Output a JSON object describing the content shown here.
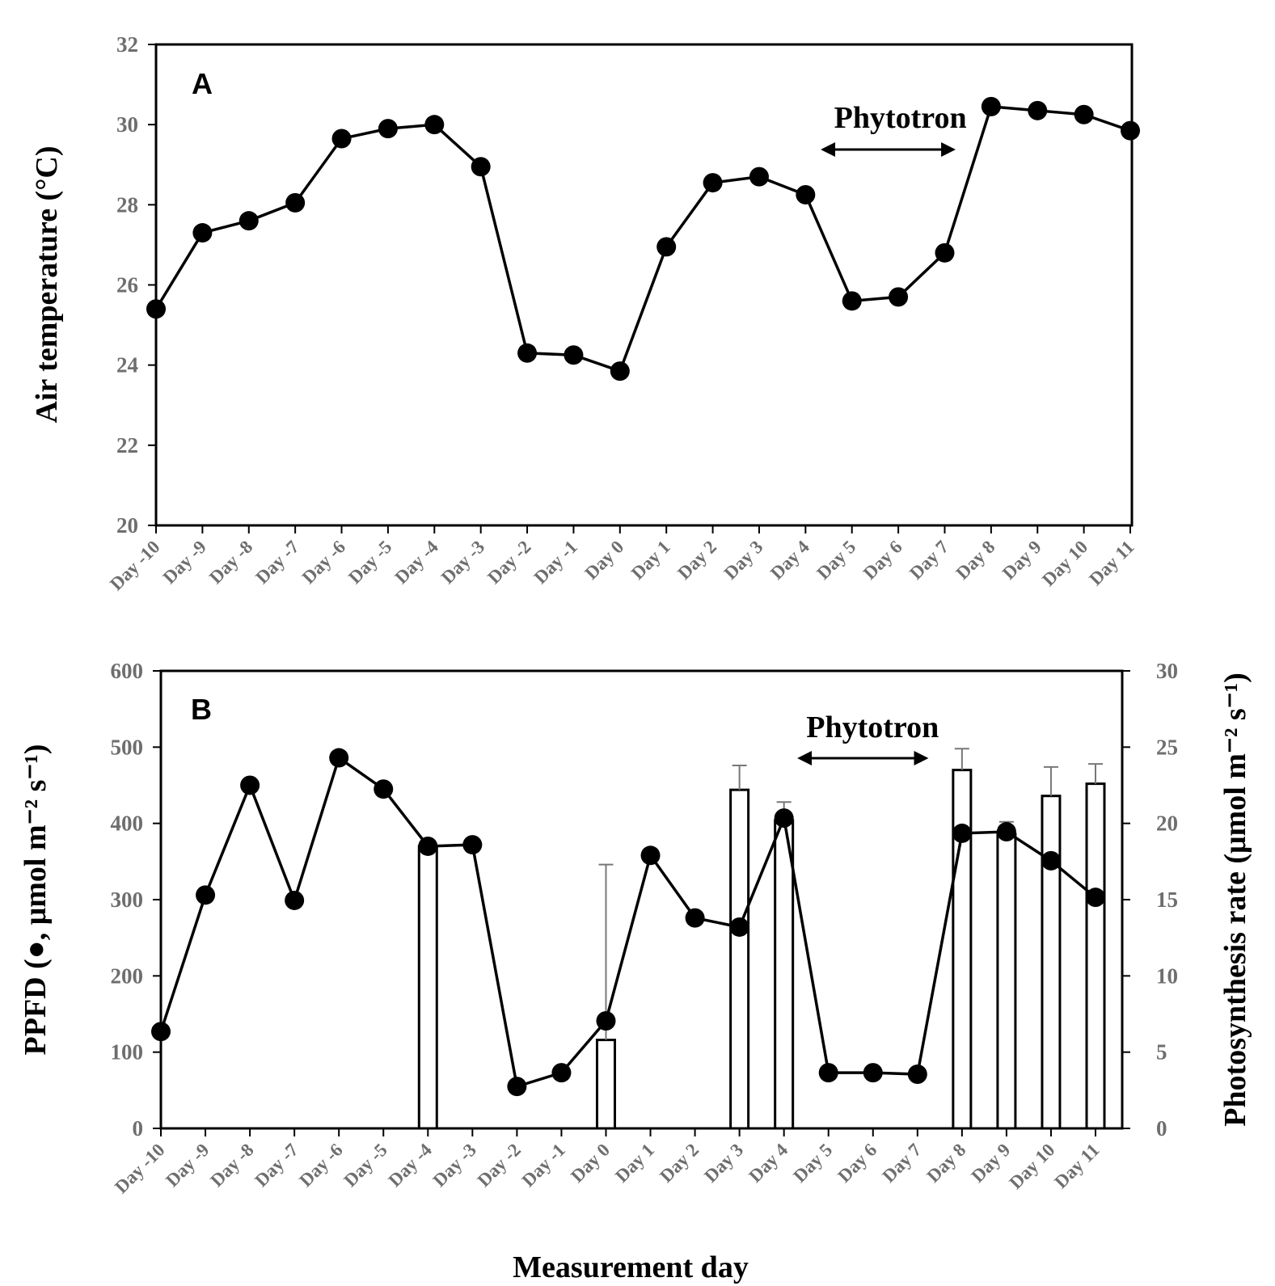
{
  "chart_data": [
    {
      "type": "line",
      "panel_label": "A",
      "categories": [
        "Day -10",
        "Day -9",
        "Day -8",
        "Day -7",
        "Day -6",
        "Day -5",
        "Day -4",
        "Day -3",
        "Day -2",
        "Day -1",
        "Day 0",
        "Day 1",
        "Day 2",
        "Day 3",
        "Day 4",
        "Day 5",
        "Day 6",
        "Day 7",
        "Day 8",
        "Day 9",
        "Day 10",
        "Day 11"
      ],
      "series": [
        {
          "name": "Air temperature",
          "values": [
            25.4,
            27.3,
            27.6,
            28.05,
            29.65,
            29.9,
            30.0,
            28.95,
            24.3,
            24.25,
            23.85,
            26.95,
            28.55,
            28.7,
            28.25,
            25.6,
            25.7,
            26.8,
            30.45,
            30.35,
            30.25,
            29.85
          ]
        }
      ],
      "ylabel": "Air temperature (°C)",
      "ylim": [
        20,
        32
      ],
      "yticks": [
        20,
        22,
        24,
        26,
        28,
        30,
        32
      ],
      "annotation": {
        "text": "Phytotron",
        "from": "Day 5",
        "to": "Day 7"
      }
    },
    {
      "type": "bar+line",
      "panel_label": "B",
      "categories": [
        "Day -10",
        "Day -9",
        "Day -8",
        "Day -7",
        "Day -6",
        "Day -5",
        "Day -4",
        "Day -3",
        "Day -2",
        "Day -1",
        "Day 0",
        "Day 1",
        "Day 2",
        "Day 3",
        "Day 4",
        "Day 5",
        "Day 6",
        "Day 7",
        "Day 8",
        "Day 9",
        "Day 10",
        "Day 11"
      ],
      "series": [
        {
          "name": "PPFD",
          "axis": "left",
          "values": [
            127,
            306,
            450,
            299,
            486,
            445,
            370,
            372,
            55,
            73,
            141,
            358,
            276,
            264,
            407,
            73,
            73,
            71,
            387,
            389,
            351,
            303
          ]
        },
        {
          "name": "Photosynthesis rate",
          "axis": "right",
          "kind": "bar",
          "values": [
            null,
            null,
            null,
            null,
            null,
            null,
            18.5,
            null,
            null,
            null,
            5.8,
            null,
            null,
            22.2,
            20.2,
            null,
            null,
            null,
            23.5,
            19.3,
            21.8,
            22.6
          ],
          "errors": [
            null,
            null,
            null,
            null,
            null,
            null,
            null,
            null,
            null,
            null,
            11.5,
            null,
            null,
            1.6,
            1.2,
            null,
            null,
            null,
            1.4,
            0.8,
            1.9,
            1.3
          ]
        }
      ],
      "ylabel_left": "PPFD (●, μmol m⁻² s⁻¹)",
      "ylabel_right": "Photosynthesis rate (μmol m⁻² s⁻¹)",
      "xlabel": "Measurement day",
      "ylim_left": [
        0,
        600
      ],
      "yticks_left": [
        0,
        100,
        200,
        300,
        400,
        500,
        600
      ],
      "ylim_right": [
        0,
        30
      ],
      "yticks_right": [
        0,
        5,
        10,
        15,
        20,
        25,
        30
      ],
      "annotation": {
        "text": "Phytotron",
        "from": "Day 5",
        "to": "Day 7"
      }
    }
  ]
}
